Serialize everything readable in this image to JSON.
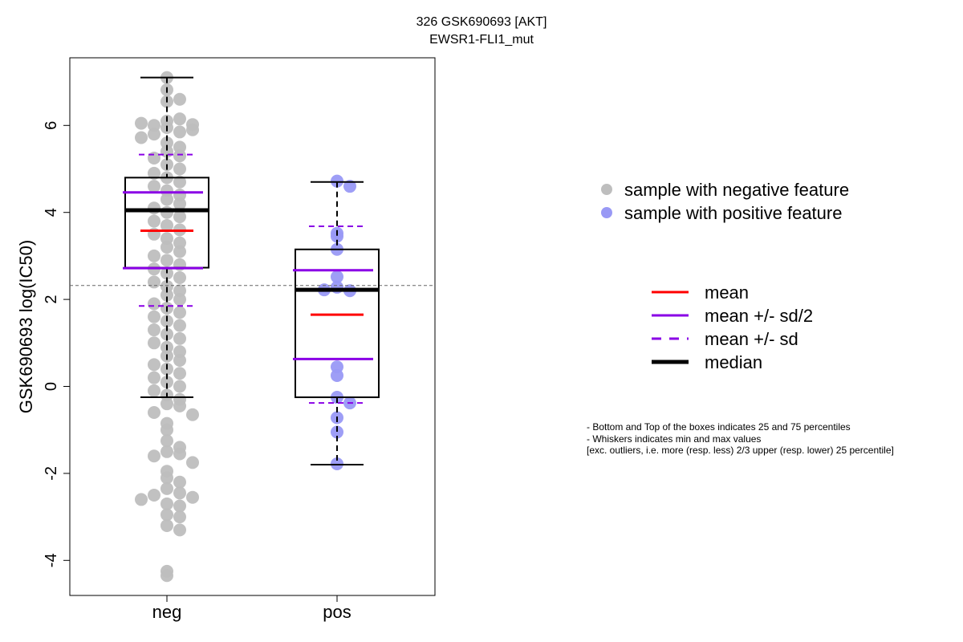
{
  "title": "326 GSK690693 [AKT]",
  "subtitle": "EWSR1-FLI1_mut",
  "chart_data": {
    "type": "boxplot-beeswarm",
    "ylabel": "GSK690693 log(IC50)",
    "ylim": [
      -4.8,
      7.6
    ],
    "yticks": [
      "-4",
      "-2",
      "0",
      "2",
      "4",
      "6"
    ],
    "reference_line": 2.32,
    "groups": [
      {
        "name": "neg",
        "color": "#bebebe",
        "min": -0.25,
        "q1": 2.73,
        "median": 4.05,
        "q3": 4.8,
        "max": 7.1,
        "mean": 3.58,
        "mean_minus_half_sd": 2.72,
        "mean_plus_half_sd": 4.46,
        "mean_minus_sd": 1.85,
        "mean_plus_sd": 5.33,
        "points": [
          7.1,
          6.82,
          6.55,
          6.6,
          6.1,
          6.15,
          6.0,
          5.95,
          6.02,
          5.85,
          5.8,
          5.9,
          6.05,
          5.72,
          5.6,
          5.5,
          5.4,
          5.3,
          5.25,
          5.1,
          5.0,
          4.9,
          4.8,
          4.7,
          4.6,
          4.5,
          4.4,
          4.3,
          4.2,
          4.1,
          4.0,
          3.9,
          3.8,
          3.7,
          3.6,
          3.5,
          3.4,
          3.3,
          3.2,
          3.1,
          3.0,
          2.9,
          2.8,
          2.7,
          2.6,
          2.5,
          2.4,
          2.3,
          2.2,
          2.1,
          2.0,
          1.9,
          1.8,
          1.7,
          1.6,
          1.5,
          1.4,
          1.3,
          1.2,
          1.1,
          1.0,
          0.9,
          0.8,
          0.7,
          0.6,
          0.5,
          0.4,
          0.3,
          0.2,
          0.1,
          0.0,
          -0.1,
          -0.2,
          -0.3,
          -0.4,
          -0.45,
          -0.6,
          -0.65,
          -0.85,
          -1.0,
          -1.25,
          -1.4,
          -1.5,
          -1.55,
          -1.6,
          -1.75,
          -1.95,
          -2.1,
          -2.2,
          -2.35,
          -2.45,
          -2.5,
          -2.55,
          -2.6,
          -2.7,
          -2.75,
          -2.95,
          -3.0,
          -3.2,
          -3.3,
          -4.25,
          -4.35
        ]
      },
      {
        "name": "pos",
        "color": "#9999f5",
        "min": -1.8,
        "q1": -0.25,
        "median": 2.22,
        "q3": 3.15,
        "max": 4.7,
        "mean": 1.65,
        "mean_minus_half_sd": 0.63,
        "mean_plus_half_sd": 2.67,
        "mean_minus_sd": -0.38,
        "mean_plus_sd": 3.68,
        "points": [
          4.72,
          4.6,
          3.52,
          3.45,
          3.15,
          2.52,
          2.28,
          2.2,
          2.22,
          0.45,
          0.25,
          -0.25,
          -0.38,
          -0.72,
          -1.05,
          -1.78
        ]
      }
    ]
  },
  "legend_points": [
    {
      "label": "sample with negative feature",
      "color": "#bebebe"
    },
    {
      "label": "sample with positive feature",
      "color": "#9999f5"
    }
  ],
  "legend_lines": [
    {
      "label": "mean",
      "color": "#ff0000",
      "style": "solid",
      "width": 3
    },
    {
      "label": "mean +/- sd/2",
      "color": "#8a00e6",
      "style": "solid",
      "width": 3
    },
    {
      "label": "mean +/- sd",
      "color": "#8a00e6",
      "style": "dashed",
      "width": 3
    },
    {
      "label": "median",
      "color": "#000000",
      "style": "solid",
      "width": 5
    }
  ],
  "notes": [
    "- Bottom and Top of the boxes indicates 25 and 75 percentiles",
    "- Whiskers indicates min and max values",
    "[exc. outliers, i.e. more (resp. less) 2/3 upper (resp. lower) 25 percentile]"
  ]
}
